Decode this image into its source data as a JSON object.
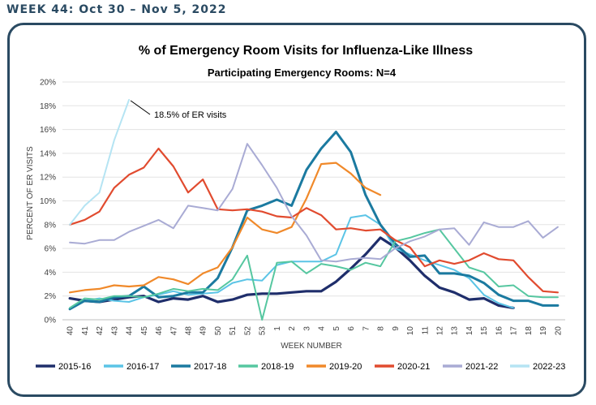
{
  "header": {
    "week_label": "WEEK 44: Oct 30 – Nov 5, 2022"
  },
  "chart_data": {
    "type": "line",
    "title": "% of Emergency Room Visits for Influenza-Like Illness",
    "subtitle": "Participating Emergency Rooms: N=4",
    "xlabel": "WEEK NUMBER",
    "ylabel": "PERCENT OF ER VISITS",
    "ylim": [
      0,
      20
    ],
    "y_ticks": [
      "0%",
      "2%",
      "4%",
      "6%",
      "8%",
      "10%",
      "12%",
      "14%",
      "16%",
      "18%",
      "20%"
    ],
    "categories": [
      "40",
      "41",
      "42",
      "43",
      "44",
      "45",
      "46",
      "47",
      "48",
      "49",
      "50",
      "51",
      "52",
      "53",
      "1",
      "2",
      "3",
      "4",
      "5",
      "6",
      "7",
      "8",
      "9",
      "10",
      "11",
      "12",
      "13",
      "14",
      "15",
      "16",
      "17",
      "18",
      "19",
      "20"
    ],
    "legend_position": "bottom",
    "annotation": {
      "text": "18.5% of ER visits",
      "series": "2022-23",
      "index": 4
    },
    "series": [
      {
        "name": "2015-16",
        "color": "#1f2e6b",
        "width": 3.2,
        "values": [
          1.8,
          1.6,
          1.5,
          1.7,
          1.9,
          2.0,
          1.5,
          1.8,
          1.7,
          2.0,
          1.5,
          1.7,
          2.1,
          2.2,
          2.2,
          2.3,
          2.4,
          2.4,
          3.2,
          4.3,
          5.5,
          6.9,
          6.1,
          5.0,
          3.7,
          2.7,
          2.3,
          1.7,
          1.8,
          1.2,
          1.0,
          null,
          null,
          null
        ]
      },
      {
        "name": "2016-17",
        "color": "#5bc4e6",
        "width": 2,
        "values": [
          1.0,
          1.6,
          1.8,
          1.6,
          1.5,
          1.9,
          2.1,
          2.4,
          2.1,
          2.2,
          2.3,
          3.1,
          3.4,
          3.3,
          4.6,
          4.9,
          4.9,
          4.9,
          5.5,
          8.6,
          8.8,
          8.0,
          6.0,
          5.5,
          5.0,
          4.6,
          4.2,
          3.5,
          2.1,
          1.4,
          1.0,
          null,
          null,
          null
        ]
      },
      {
        "name": "2017-18",
        "color": "#1b7aa0",
        "width": 3,
        "values": [
          0.9,
          1.6,
          1.5,
          1.9,
          2.0,
          2.8,
          1.9,
          2.0,
          2.3,
          2.3,
          3.5,
          6.1,
          9.2,
          9.6,
          10.1,
          9.6,
          12.6,
          14.4,
          15.8,
          14.1,
          10.5,
          8.0,
          6.4,
          5.3,
          5.4,
          3.9,
          3.9,
          3.7,
          3.1,
          2.1,
          1.6,
          1.6,
          1.2,
          1.2
        ]
      },
      {
        "name": "2018-19",
        "color": "#56c7a0",
        "width": 2,
        "values": [
          1.0,
          1.8,
          1.7,
          2.0,
          2.0,
          1.9,
          2.2,
          2.6,
          2.4,
          2.6,
          2.5,
          3.4,
          5.4,
          0.0,
          4.8,
          4.9,
          3.9,
          4.7,
          4.5,
          4.2,
          4.8,
          4.5,
          6.6,
          6.9,
          7.3,
          7.6,
          6.0,
          4.4,
          4.0,
          2.8,
          2.9,
          2.0,
          1.9,
          1.9
        ]
      },
      {
        "name": "2019-20",
        "color": "#f0892a",
        "width": 2.2,
        "values": [
          2.3,
          2.5,
          2.6,
          2.9,
          2.8,
          2.9,
          3.6,
          3.4,
          3.0,
          3.9,
          4.4,
          6.1,
          8.6,
          7.6,
          7.3,
          7.8,
          10.2,
          13.1,
          13.2,
          12.3,
          11.1,
          10.5,
          null,
          null,
          null,
          null,
          null,
          null,
          null,
          null,
          null,
          null,
          null,
          null
        ]
      },
      {
        "name": "2020-21",
        "color": "#e14b2f",
        "width": 2.2,
        "values": [
          8.0,
          8.4,
          9.1,
          11.1,
          12.2,
          12.8,
          14.4,
          12.9,
          10.7,
          11.8,
          9.3,
          9.2,
          9.3,
          9.1,
          8.7,
          8.6,
          9.4,
          8.8,
          7.6,
          7.7,
          7.5,
          7.6,
          6.7,
          6.1,
          4.5,
          5.0,
          4.7,
          5.0,
          5.6,
          5.1,
          5.0,
          3.6,
          2.4,
          2.3
        ]
      },
      {
        "name": "2021-22",
        "color": "#a9abd4",
        "width": 2,
        "values": [
          6.5,
          6.4,
          6.7,
          6.7,
          7.4,
          7.9,
          8.4,
          7.7,
          9.6,
          9.4,
          9.2,
          11.0,
          14.8,
          13.0,
          11.1,
          8.7,
          7.1,
          5.0,
          4.9,
          5.1,
          5.2,
          5.1,
          6.0,
          6.6,
          7.0,
          7.6,
          7.7,
          6.3,
          8.2,
          7.8,
          7.8,
          8.3,
          6.9,
          7.8
        ]
      },
      {
        "name": "2022-23",
        "color": "#b5e4f3",
        "width": 2,
        "values": [
          8.0,
          9.6,
          10.7,
          15.1,
          18.5,
          null,
          null,
          null,
          null,
          null,
          null,
          null,
          null,
          null,
          null,
          null,
          null,
          null,
          null,
          null,
          null,
          null,
          null,
          null,
          null,
          null,
          null,
          null,
          null,
          null,
          null,
          null,
          null,
          null
        ]
      }
    ]
  }
}
